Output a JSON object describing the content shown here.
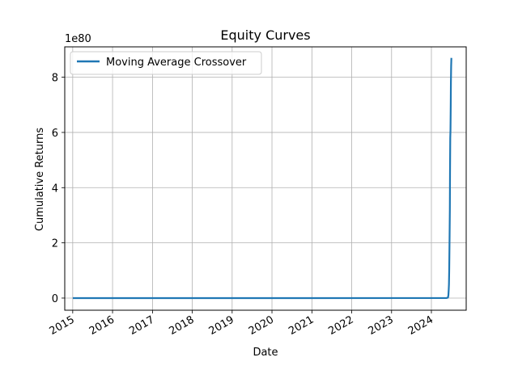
{
  "chart_data": {
    "type": "line",
    "title": "Equity Curves",
    "xlabel": "Date",
    "ylabel": "Cumulative Returns",
    "y_offset_text": "1e80",
    "y_multiplier": 1e+80,
    "x_tick_labels": [
      "2015",
      "2016",
      "2017",
      "2018",
      "2019",
      "2020",
      "2021",
      "2022",
      "2023",
      "2024"
    ],
    "y_tick_labels": [
      "0",
      "2",
      "4",
      "6",
      "8"
    ],
    "xlim": [
      "2014-10-20",
      "2024-11-15"
    ],
    "ylim": [
      -4.4e+79,
      9.1e+80
    ],
    "grid": true,
    "legend_position": "upper-left",
    "series": [
      {
        "name": "Moving Average Crossover",
        "color": "#1f77b4",
        "x": [
          "2015-01-02",
          "2020-01-02",
          "2024-05-20",
          "2024-06-01",
          "2024-06-05",
          "2024-06-08",
          "2024-06-10",
          "2024-06-12",
          "2024-06-14",
          "2024-06-16",
          "2024-06-18",
          "2024-06-20",
          "2024-06-22",
          "2024-06-24",
          "2024-06-26",
          "2024-06-28",
          "2024-06-30",
          "2024-07-02"
        ],
        "y": [
          1.0,
          1.0,
          1e+77,
          2e+78,
          1e+79,
          3e+79,
          5e+79,
          1e+80,
          1.5e+80,
          2.3e+80,
          3.2e+80,
          4.5e+80,
          5.8e+80,
          6.1e+80,
          7e+80,
          7.8e+80,
          8.4e+80,
          8.7e+80
        ]
      }
    ]
  }
}
